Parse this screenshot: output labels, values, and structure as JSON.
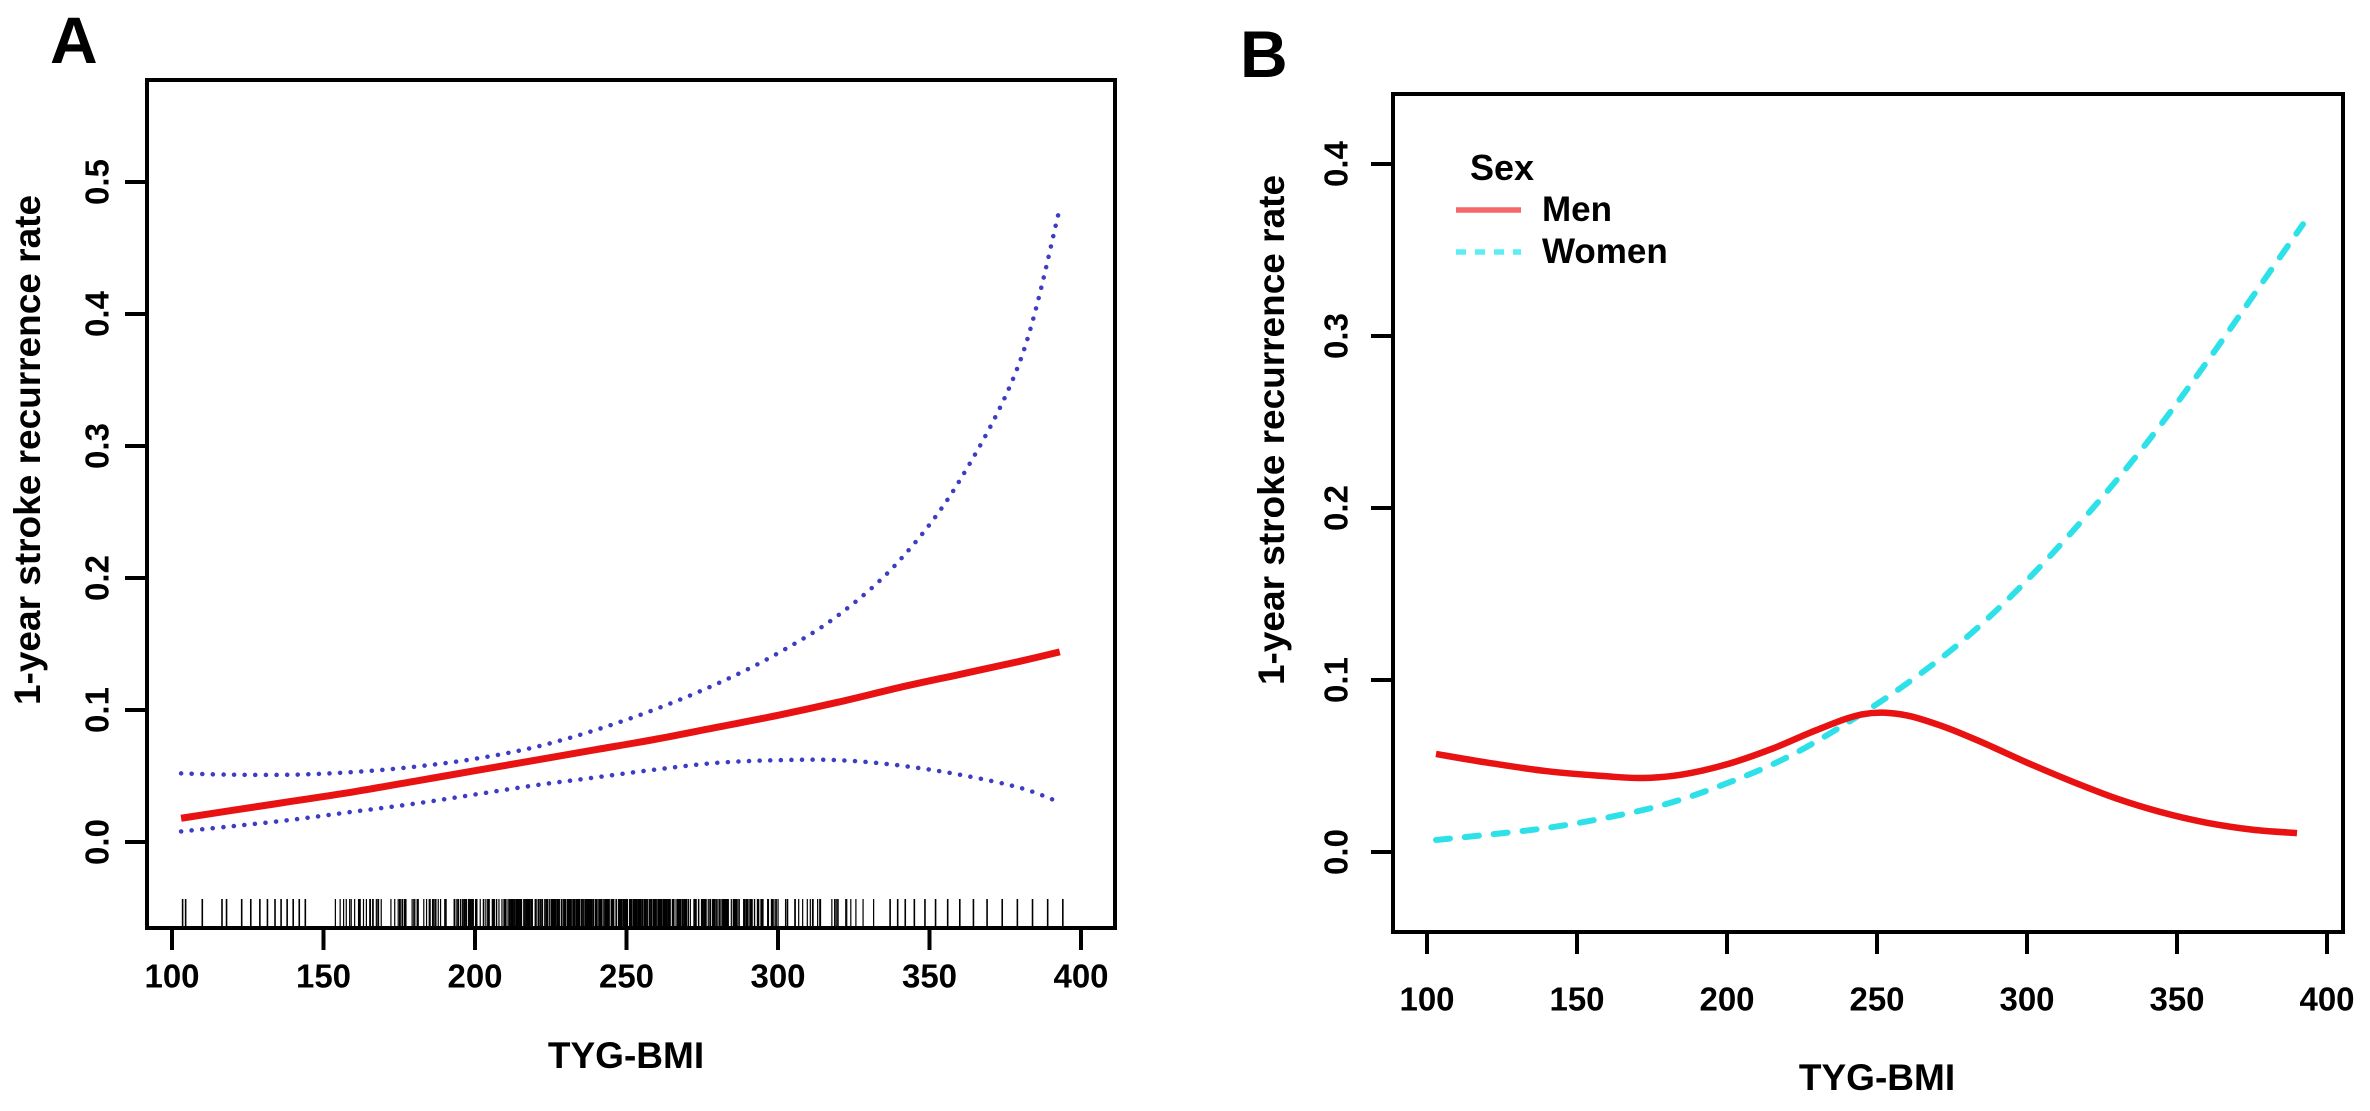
{
  "figure": {
    "background": "#ffffff",
    "axis_color": "#000000",
    "tick_label_fontsize": 33
  },
  "chart_data": [
    {
      "panel": "A",
      "type": "line",
      "title": "",
      "xlabel": "TYG-BMI",
      "ylabel": "1-year stroke recurrence rate",
      "xlim": [
        88,
        412
      ],
      "ylim": [
        -0.065,
        0.58
      ],
      "x_ticks": [
        100,
        150,
        200,
        250,
        300,
        350,
        400
      ],
      "x_tick_labels": [
        "100",
        "150",
        "200",
        "250",
        "300",
        "350",
        "400"
      ],
      "y_ticks": [
        0.0,
        0.1,
        0.2,
        0.3,
        0.4,
        0.5
      ],
      "y_tick_labels": [
        "0.0",
        "0.1",
        "0.2",
        "0.3",
        "0.4",
        "0.5"
      ],
      "grid": false,
      "legend": null,
      "series": [
        {
          "name": "ci-upper",
          "style": "dotted",
          "color": "#3c3cc4",
          "width": 4.5,
          "x": [
            103,
            120,
            140,
            160,
            180,
            200,
            220,
            240,
            260,
            280,
            300,
            320,
            340,
            360,
            380,
            393
          ],
          "y": [
            0.052,
            0.051,
            0.051,
            0.053,
            0.057,
            0.063,
            0.072,
            0.085,
            0.101,
            0.12,
            0.143,
            0.172,
            0.213,
            0.274,
            0.365,
            0.48
          ]
        },
        {
          "name": "ci-lower",
          "style": "dotted",
          "color": "#3c3cc4",
          "width": 4.5,
          "x": [
            103,
            120,
            140,
            160,
            180,
            200,
            220,
            240,
            260,
            280,
            300,
            320,
            340,
            360,
            380,
            393
          ],
          "y": [
            0.008,
            0.012,
            0.017,
            0.023,
            0.029,
            0.036,
            0.043,
            0.049,
            0.055,
            0.06,
            0.062,
            0.062,
            0.058,
            0.051,
            0.041,
            0.03
          ]
        },
        {
          "name": "fitted-recurrence-rate",
          "style": "solid",
          "color": "#e81212",
          "width": 7,
          "x": [
            103,
            120,
            140,
            160,
            180,
            200,
            220,
            240,
            260,
            280,
            300,
            320,
            340,
            360,
            380,
            393
          ],
          "y": [
            0.018,
            0.024,
            0.031,
            0.038,
            0.046,
            0.054,
            0.062,
            0.07,
            0.078,
            0.087,
            0.096,
            0.106,
            0.117,
            0.127,
            0.137,
            0.144
          ]
        }
      ],
      "rug": {
        "color": "#000000",
        "sparse_left": [
          103.5,
          104.5,
          110,
          116.5,
          118,
          123,
          126,
          129,
          131.5,
          134,
          136,
          138,
          140,
          142,
          144
        ],
        "sparse_right": [
          337,
          339.5,
          342,
          345,
          348.5,
          352,
          356,
          360,
          364.5,
          369,
          374,
          379,
          384,
          389,
          394
        ],
        "dense_from": 145.5,
        "dense_to": 335,
        "dense_count": 520,
        "seed": 42
      }
    },
    {
      "panel": "B",
      "type": "line",
      "title": "",
      "xlabel": "TYG-BMI",
      "ylabel": "1-year stroke recurrence rate",
      "xlim": [
        88,
        412
      ],
      "ylim": [
        -0.046,
        0.44
      ],
      "x_ticks": [
        100,
        150,
        200,
        250,
        300,
        350,
        400
      ],
      "x_tick_labels": [
        "100",
        "150",
        "200",
        "250",
        "300",
        "350",
        "400"
      ],
      "y_ticks": [
        0.0,
        0.1,
        0.2,
        0.3,
        0.4
      ],
      "y_tick_labels": [
        "0.0",
        "0.1",
        "0.2",
        "0.3",
        "0.4"
      ],
      "grid": false,
      "legend": {
        "title": "Sex",
        "position": "top-left",
        "entries": [
          {
            "label": "Men",
            "style": "solid",
            "swatch_color": "#f4686b"
          },
          {
            "label": "Women",
            "style": "dashed",
            "swatch_color": "#5ceef2"
          }
        ]
      },
      "series": [
        {
          "name": "women",
          "style": "dashed",
          "color": "#2ee1e9",
          "width": 6,
          "x": [
            103,
            120,
            140,
            160,
            180,
            200,
            220,
            240,
            260,
            280,
            300,
            320,
            340,
            360,
            380,
            392
          ],
          "y": [
            0.007,
            0.01,
            0.014,
            0.02,
            0.028,
            0.04,
            0.055,
            0.075,
            0.098,
            0.125,
            0.158,
            0.196,
            0.238,
            0.285,
            0.335,
            0.365
          ]
        },
        {
          "name": "men",
          "style": "solid",
          "color": "#e81212",
          "width": 6.5,
          "x": [
            103,
            120,
            140,
            160,
            172,
            185,
            200,
            215,
            230,
            245,
            258,
            272,
            286,
            300,
            315,
            330,
            345,
            360,
            375,
            390
          ],
          "y": [
            0.057,
            0.052,
            0.047,
            0.044,
            0.043,
            0.045,
            0.051,
            0.06,
            0.071,
            0.08,
            0.08,
            0.073,
            0.063,
            0.052,
            0.041,
            0.031,
            0.023,
            0.017,
            0.013,
            0.011
          ]
        }
      ],
      "rug": null
    }
  ]
}
